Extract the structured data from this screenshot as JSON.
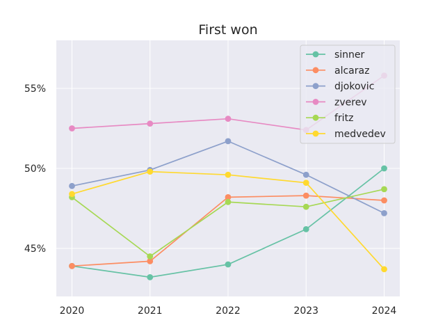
{
  "chart_data": {
    "type": "line",
    "title": "First won",
    "xlabel": "",
    "ylabel": "",
    "x": [
      2020,
      2021,
      2022,
      2023,
      2024
    ],
    "x_tick_labels": [
      "2020",
      "2021",
      "2022",
      "2023",
      "2024"
    ],
    "y_ticks": [
      45,
      50,
      55
    ],
    "y_tick_labels": [
      "45%",
      "50%",
      "55%"
    ],
    "ylim": [
      42.0,
      58.0
    ],
    "grid": true,
    "legend_position": "top-right",
    "series": [
      {
        "name": "sinner",
        "color": "#66c2a5",
        "values": [
          43.9,
          43.2,
          44.0,
          46.2,
          50.0
        ]
      },
      {
        "name": "alcaraz",
        "color": "#fc8d62",
        "values": [
          43.9,
          44.2,
          48.2,
          48.3,
          48.0
        ]
      },
      {
        "name": "djokovic",
        "color": "#8da0cb",
        "values": [
          48.9,
          49.9,
          51.7,
          49.6,
          47.2
        ]
      },
      {
        "name": "zverev",
        "color": "#e78ac3",
        "values": [
          52.5,
          52.8,
          53.1,
          52.4,
          55.8
        ]
      },
      {
        "name": "fritz",
        "color": "#a6d854",
        "values": [
          48.2,
          44.5,
          47.9,
          47.6,
          48.7
        ]
      },
      {
        "name": "medvedev",
        "color": "#ffd92f",
        "values": [
          48.4,
          49.8,
          49.6,
          49.1,
          43.7
        ]
      }
    ]
  }
}
